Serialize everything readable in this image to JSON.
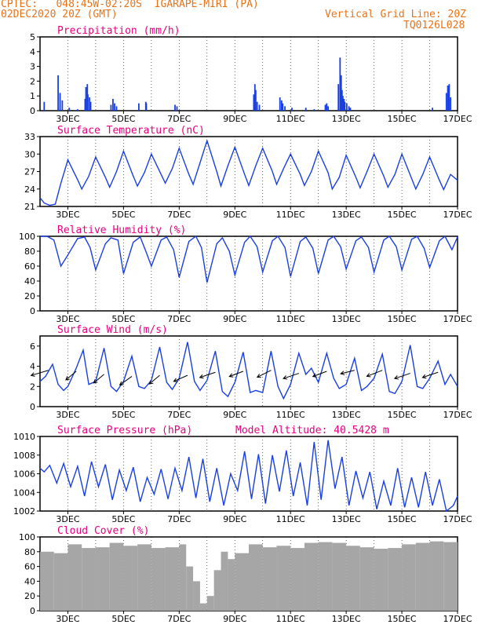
{
  "header": {
    "line1_left": "CPTEC:   048:45W-02:20S  IGARAPE-MIRI (PA)",
    "line2_left": "02DEC2020 20Z (GMT)",
    "line1_right": "Vertical Grid Line: 20Z",
    "line2_right": "TQ0126L028"
  },
  "colors": {
    "header_text": "#e8731a",
    "title_text": "#e6007e",
    "line": "#1a3fe0",
    "bar": "#1a3fe0",
    "cloud": "#a6a6a6",
    "arrow": "#000000"
  },
  "x_axis": {
    "start": "2DEC 20Z",
    "end": "17DEC 20Z",
    "tick_labels": [
      "3DEC",
      "5DEC",
      "7DEC",
      "9DEC",
      "11DEC",
      "13DEC",
      "15DEC",
      "17DEC"
    ],
    "tick_days_from_start": [
      1,
      3,
      5,
      7,
      9,
      11,
      13,
      15
    ]
  },
  "chart_data": [
    {
      "type": "bar",
      "title": "Precipitation (mm/h)",
      "ylim": [
        0,
        5
      ],
      "yticks": [
        0,
        1,
        2,
        3,
        4,
        5
      ],
      "series": [
        {
          "x_days": [
            0.15,
            0.65,
            0.72,
            0.8,
            1.05,
            1.35,
            1.62,
            1.65,
            1.7,
            1.72,
            1.78,
            1.82,
            2.55,
            2.62,
            2.68,
            2.75,
            3.55,
            3.8,
            3.82,
            4.85,
            4.92,
            7.68,
            7.72,
            7.75,
            7.8,
            7.88,
            8.62,
            8.68,
            8.72,
            8.8,
            9.05,
            9.55,
            9.85,
            10.25,
            10.3,
            10.35,
            10.72,
            10.78,
            10.82,
            10.85,
            10.88,
            10.92,
            10.95,
            11.02,
            11.1,
            11.15,
            14.1,
            14.6,
            14.65,
            14.7,
            14.75
          ],
          "values": [
            0.6,
            2.4,
            1.2,
            0.7,
            0.2,
            0.1,
            0.8,
            1.6,
            1.8,
            1.1,
            0.9,
            0.6,
            0.4,
            0.8,
            0.5,
            0.3,
            0.5,
            0.6,
            0.5,
            0.4,
            0.3,
            1.1,
            1.8,
            1.4,
            0.6,
            0.4,
            0.9,
            0.7,
            0.5,
            0.3,
            0.2,
            0.2,
            0.1,
            0.4,
            0.5,
            0.3,
            1.8,
            3.6,
            2.4,
            1.4,
            1.0,
            0.8,
            0.6,
            0.5,
            0.3,
            0.2,
            0.2,
            1.2,
            1.7,
            1.8,
            0.9
          ]
        }
      ]
    },
    {
      "type": "line",
      "title": "Surface Temperature (nC)",
      "ylim": [
        21,
        33
      ],
      "yticks": [
        21,
        24,
        27,
        30,
        33
      ],
      "series": [
        {
          "x_days": [
            0.0,
            0.15,
            0.35,
            0.55,
            0.75,
            1.0,
            1.35,
            1.5,
            1.75,
            2.0,
            2.35,
            2.5,
            2.75,
            3.0,
            3.35,
            3.5,
            3.75,
            4.0,
            4.35,
            4.5,
            4.75,
            5.0,
            5.35,
            5.5,
            5.75,
            6.0,
            6.35,
            6.5,
            6.75,
            7.0,
            7.35,
            7.5,
            7.75,
            8.0,
            8.35,
            8.5,
            8.75,
            9.0,
            9.35,
            9.5,
            9.75,
            10.0,
            10.35,
            10.5,
            10.75,
            11.0,
            11.35,
            11.5,
            11.75,
            12.0,
            12.35,
            12.5,
            12.75,
            13.0,
            13.35,
            13.5,
            13.75,
            14.0,
            14.35,
            14.5,
            14.75,
            15.0
          ],
          "values": [
            22.5,
            21.6,
            21.2,
            21.4,
            25.0,
            29.0,
            25.6,
            24.0,
            26.2,
            29.5,
            26.0,
            24.3,
            27.0,
            30.5,
            26.2,
            24.5,
            26.8,
            30.0,
            26.5,
            25.0,
            27.5,
            31.0,
            26.5,
            24.8,
            28.5,
            32.3,
            27.0,
            24.5,
            28.0,
            31.2,
            26.5,
            24.6,
            28.0,
            31.0,
            27.0,
            24.8,
            27.5,
            30.0,
            26.5,
            24.6,
            27.0,
            30.5,
            26.8,
            24.0,
            26.0,
            29.8,
            26.0,
            24.2,
            27.0,
            30.0,
            26.2,
            24.3,
            26.5,
            30.0,
            25.8,
            24.0,
            26.5,
            29.5,
            25.5,
            23.9,
            26.5,
            25.5
          ]
        }
      ]
    },
    {
      "type": "line",
      "title": "Relative Humidity (%)",
      "ylim": [
        0,
        100
      ],
      "yticks": [
        0,
        20,
        40,
        60,
        80,
        100
      ],
      "series": [
        {
          "x_days": [
            0.0,
            0.25,
            0.5,
            0.75,
            1.0,
            1.35,
            1.6,
            1.8,
            2.0,
            2.35,
            2.55,
            2.8,
            3.0,
            3.35,
            3.6,
            3.8,
            4.0,
            4.35,
            4.55,
            4.8,
            5.0,
            5.35,
            5.6,
            5.8,
            6.0,
            6.35,
            6.55,
            6.8,
            7.0,
            7.35,
            7.55,
            7.8,
            8.0,
            8.35,
            8.55,
            8.8,
            9.0,
            9.35,
            9.55,
            9.8,
            10.0,
            10.35,
            10.55,
            10.8,
            11.0,
            11.35,
            11.55,
            11.8,
            12.0,
            12.35,
            12.55,
            12.8,
            13.0,
            13.35,
            13.55,
            13.8,
            14.0,
            14.35,
            14.55,
            14.8,
            15.0
          ],
          "values": [
            100,
            100,
            95,
            60,
            75,
            97,
            99,
            85,
            55,
            90,
            98,
            95,
            50,
            92,
            99,
            80,
            60,
            95,
            99,
            82,
            45,
            93,
            100,
            85,
            38,
            90,
            98,
            80,
            48,
            92,
            100,
            86,
            52,
            94,
            100,
            85,
            46,
            93,
            99,
            84,
            50,
            95,
            100,
            86,
            56,
            94,
            99,
            85,
            52,
            95,
            100,
            86,
            55,
            96,
            100,
            84,
            58,
            94,
            100,
            82,
            99
          ]
        }
      ]
    },
    {
      "type": "line",
      "title": "Surface Wind (m/s)",
      "ylim": [
        0,
        7
      ],
      "yticks": [
        0,
        2,
        4,
        6
      ],
      "series": [
        {
          "x_days": [
            0.0,
            0.2,
            0.45,
            0.65,
            0.85,
            1.0,
            1.3,
            1.55,
            1.75,
            2.0,
            2.3,
            2.55,
            2.75,
            3.0,
            3.3,
            3.55,
            3.75,
            4.0,
            4.3,
            4.55,
            4.75,
            5.0,
            5.3,
            5.55,
            5.75,
            6.0,
            6.3,
            6.55,
            6.75,
            7.0,
            7.3,
            7.55,
            7.75,
            8.0,
            8.3,
            8.55,
            8.75,
            9.0,
            9.3,
            9.55,
            9.75,
            10.0,
            10.3,
            10.55,
            10.75,
            11.0,
            11.3,
            11.55,
            11.75,
            12.0,
            12.3,
            12.55,
            12.75,
            13.0,
            13.3,
            13.55,
            13.75,
            14.0,
            14.3,
            14.55,
            14.75,
            15.0
          ],
          "values": [
            2.5,
            3.0,
            4.2,
            2.2,
            1.6,
            2.0,
            3.8,
            5.6,
            2.2,
            2.5,
            5.8,
            2.0,
            1.5,
            2.5,
            5.0,
            2.0,
            1.8,
            2.6,
            5.9,
            2.4,
            1.7,
            2.8,
            6.4,
            2.5,
            1.6,
            2.6,
            5.5,
            1.5,
            1.0,
            2.4,
            5.4,
            1.4,
            1.6,
            1.4,
            5.5,
            2.0,
            0.8,
            2.2,
            5.3,
            3.2,
            3.8,
            2.4,
            5.3,
            2.8,
            1.8,
            2.2,
            4.8,
            1.6,
            2.0,
            2.8,
            5.2,
            1.5,
            1.3,
            2.5,
            6.1,
            2.0,
            1.8,
            2.8,
            4.5,
            2.2,
            3.2,
            2.0
          ]
        }
      ],
      "wind_vectors_days": [
        0.3,
        1.3,
        2.3,
        3.3,
        4.3,
        5.3,
        6.3,
        7.3,
        8.3,
        9.3,
        10.3,
        11.3,
        12.3,
        13.3,
        14.3
      ],
      "wind_vectors_speed": [
        3.6,
        3.5,
        3.2,
        3.0,
        3.1,
        3.1,
        3.4,
        3.5,
        3.6,
        3.3,
        3.5,
        3.6,
        3.6,
        3.3,
        3.4
      ],
      "wind_vectors_dx": [
        1.0,
        0.6,
        0.6,
        0.7,
        0.6,
        0.8,
        0.9,
        0.8,
        0.8,
        0.9,
        0.8,
        0.8,
        0.9,
        0.9,
        0.9
      ],
      "wind_vectors_dy": [
        0.3,
        0.5,
        0.5,
        0.5,
        0.5,
        0.35,
        0.3,
        0.3,
        0.4,
        0.3,
        0.3,
        0.2,
        0.35,
        0.3,
        0.3
      ]
    },
    {
      "type": "line",
      "title": "Surface Pressure (hPa)",
      "annotation": "Model Altitude: 40.5428  m",
      "ylim": [
        1002,
        1010
      ],
      "yticks": [
        1002,
        1004,
        1006,
        1008,
        1010
      ],
      "series": [
        {
          "x_days": [
            0.0,
            0.15,
            0.35,
            0.6,
            0.85,
            1.1,
            1.35,
            1.6,
            1.85,
            2.1,
            2.35,
            2.6,
            2.85,
            3.1,
            3.35,
            3.6,
            3.85,
            4.1,
            4.35,
            4.6,
            4.85,
            5.1,
            5.35,
            5.6,
            5.85,
            6.1,
            6.35,
            6.6,
            6.85,
            7.1,
            7.35,
            7.6,
            7.85,
            8.1,
            8.35,
            8.6,
            8.85,
            9.1,
            9.35,
            9.6,
            9.85,
            10.1,
            10.35,
            10.6,
            10.85,
            11.1,
            11.35,
            11.6,
            11.85,
            12.1,
            12.35,
            12.6,
            12.85,
            13.1,
            13.35,
            13.6,
            13.85,
            14.1,
            14.35,
            14.6,
            14.85,
            15.0
          ],
          "values": [
            1006.6,
            1006.2,
            1006.9,
            1005.0,
            1007.1,
            1004.6,
            1006.8,
            1003.6,
            1007.3,
            1004.6,
            1007.0,
            1003.2,
            1006.4,
            1004.2,
            1006.7,
            1003.0,
            1005.6,
            1003.8,
            1006.5,
            1003.3,
            1006.6,
            1004.2,
            1007.8,
            1003.4,
            1007.6,
            1003.0,
            1006.6,
            1002.6,
            1006.0,
            1004.2,
            1008.4,
            1003.3,
            1008.1,
            1002.8,
            1008.0,
            1004.1,
            1008.5,
            1003.6,
            1007.2,
            1002.6,
            1009.4,
            1003.2,
            1009.6,
            1004.4,
            1007.8,
            1002.6,
            1006.3,
            1003.4,
            1006.2,
            1002.2,
            1005.2,
            1002.6,
            1006.6,
            1002.4,
            1005.6,
            1002.4,
            1006.2,
            1002.6,
            1005.4,
            1002.0,
            1002.6,
            1003.6
          ]
        }
      ]
    },
    {
      "type": "bar",
      "title": "Cloud Cover (%)",
      "ylim": [
        0,
        100
      ],
      "yticks": [
        0,
        20,
        40,
        60,
        80,
        100
      ],
      "series": [
        {
          "x_days": [
            0.0,
            0.5,
            1.0,
            1.5,
            2.0,
            2.5,
            3.0,
            3.5,
            4.0,
            4.5,
            5.0,
            5.25,
            5.5,
            5.75,
            6.0,
            6.25,
            6.5,
            6.75,
            7.0,
            7.5,
            8.0,
            8.5,
            9.0,
            9.5,
            10.0,
            10.5,
            11.0,
            11.5,
            12.0,
            12.5,
            13.0,
            13.5,
            14.0,
            14.5,
            15.0
          ],
          "values": [
            80,
            78,
            90,
            85,
            86,
            92,
            88,
            90,
            85,
            86,
            90,
            60,
            40,
            10,
            20,
            55,
            80,
            70,
            78,
            90,
            86,
            88,
            85,
            92,
            93,
            92,
            88,
            86,
            84,
            85,
            90,
            92,
            94,
            93,
            95
          ]
        }
      ]
    }
  ]
}
